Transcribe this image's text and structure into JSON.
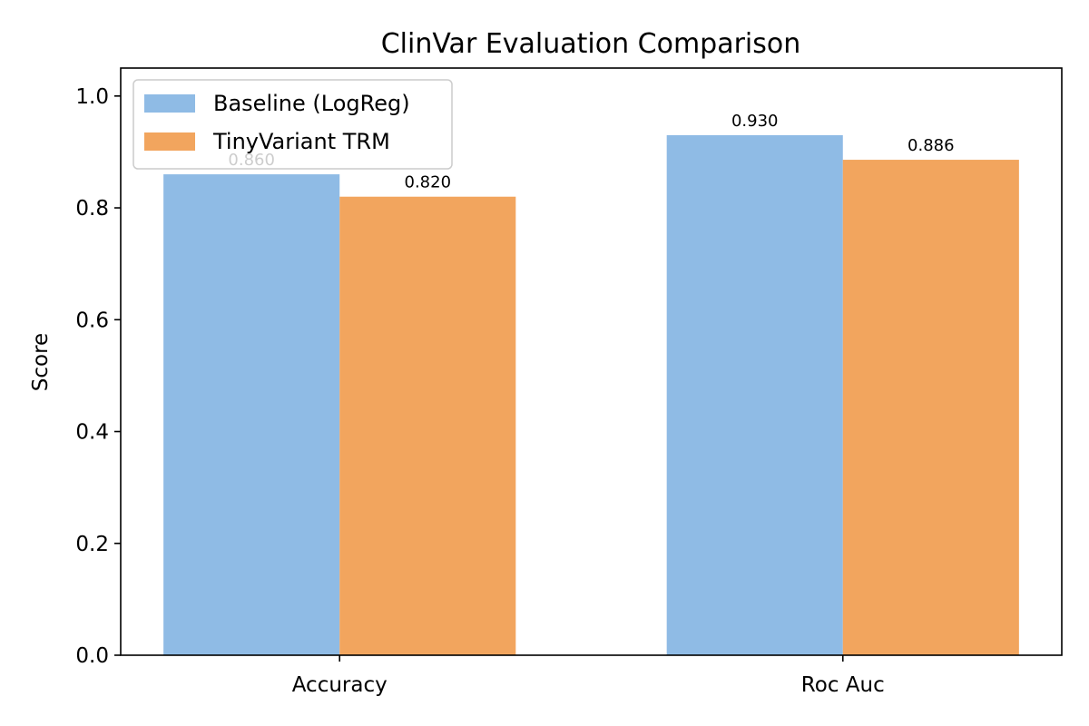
{
  "chart_data": {
    "type": "bar",
    "title": "ClinVar Evaluation Comparison",
    "xlabel": "",
    "ylabel": "Score",
    "categories": [
      "Accuracy",
      "Roc Auc"
    ],
    "series": [
      {
        "name": "Baseline (LogReg)",
        "values": [
          0.86,
          0.93
        ],
        "labels": [
          "0.860",
          "0.930"
        ],
        "color": "#8fbbe5"
      },
      {
        "name": "TinyVariant TRM",
        "values": [
          0.82,
          0.886
        ],
        "labels": [
          "0.820",
          "0.886"
        ],
        "color": "#f2a55e"
      }
    ],
    "ylim": [
      0,
      1.05
    ],
    "yticks": [
      0.0,
      0.2,
      0.4,
      0.6,
      0.8,
      1.0
    ],
    "ytick_labels": [
      "0.0",
      "0.2",
      "0.4",
      "0.6",
      "0.8",
      "1.0"
    ],
    "grid": false,
    "legend_position": "top-left"
  }
}
